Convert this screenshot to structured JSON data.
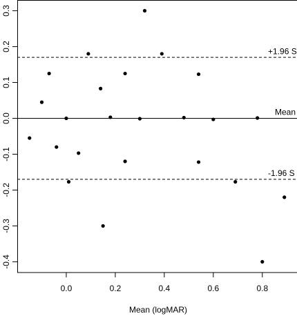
{
  "chart_data": {
    "type": "scatter",
    "xlabel": "Mean (logMAR)",
    "x": [
      0.32,
      0.09,
      0.39,
      -0.07,
      0.24,
      0.54,
      0.14,
      -0.1,
      0.0,
      0.18,
      0.3,
      0.48,
      0.6,
      0.78,
      -0.15,
      -0.04,
      0.05,
      0.24,
      0.54,
      0.01,
      0.69,
      0.89,
      0.15,
      0.8
    ],
    "values": [
      0.3,
      0.18,
      0.18,
      0.125,
      0.125,
      0.123,
      0.083,
      0.045,
      0.0,
      0.003,
      -0.001,
      0.002,
      -0.003,
      0.001,
      -0.055,
      -0.08,
      -0.097,
      -0.12,
      -0.122,
      -0.177,
      -0.177,
      -0.22,
      -0.3,
      -0.4
    ],
    "color": "#000000",
    "xlim": [
      -0.2,
      0.95
    ],
    "ylim": [
      -0.43,
      0.33
    ],
    "xticks": [
      {
        "value": 0,
        "label": "0.0"
      },
      0.2,
      0.4,
      0.6,
      0.8
    ],
    "yticks": [
      {
        "value": -0.4,
        "label": "-0.4"
      },
      {
        "value": -0.3,
        "label": "-0.3"
      },
      {
        "value": -0.2,
        "label": "-0.2"
      },
      {
        "value": -0.1,
        "label": "-0.1"
      },
      {
        "value": 0,
        "label": "0.0"
      },
      0.1,
      0.2,
      0.3
    ],
    "reference_lines": [
      {
        "value": 0.17,
        "label": "+1.96 S",
        "style": "dashed"
      },
      {
        "value": 0.0,
        "label": "Mean",
        "style": "solid"
      },
      {
        "value": -0.17,
        "label": "-1.96 S",
        "style": "dashed"
      }
    ]
  }
}
